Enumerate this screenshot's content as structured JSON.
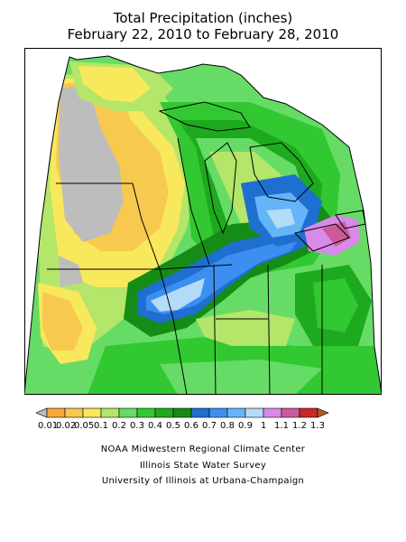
{
  "header": {
    "title": "Total Precipitation (inches)",
    "subtitle": "February 22, 2010 to February 28, 2010"
  },
  "legend": {
    "labels": [
      "0.01",
      "0.02",
      "0.05",
      "0.1",
      "0.2",
      "0.3",
      "0.4",
      "0.5",
      "0.6",
      "0.7",
      "0.8",
      "0.9",
      "1",
      "1.1",
      "1.2",
      "1.3"
    ],
    "colors": [
      "#bdbdbd",
      "#f7a739",
      "#f8c94f",
      "#f8e85c",
      "#b4e66a",
      "#66dc66",
      "#32c832",
      "#1eaa1e",
      "#158c15",
      "#1e6fd0",
      "#3c8ff0",
      "#64b4f8",
      "#b4dcf8",
      "#d88ae8",
      "#cc5a9a",
      "#c82828",
      "#b45a28"
    ],
    "no_data_color": "#bdbdbd"
  },
  "credits": {
    "line1": "NOAA Midwestern Regional Climate Center",
    "line2": "Illinois State Water Survey",
    "line3": "University of Illinois at Urbana-Champaign"
  }
}
